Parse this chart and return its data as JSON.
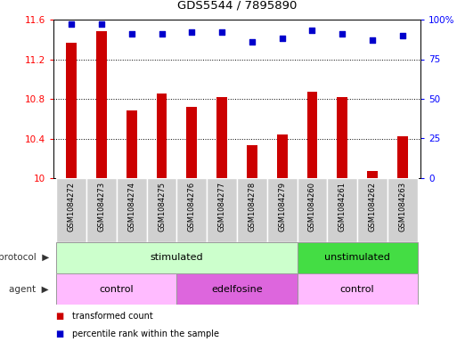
{
  "title": "GDS5544 / 7895890",
  "samples": [
    "GSM1084272",
    "GSM1084273",
    "GSM1084274",
    "GSM1084275",
    "GSM1084276",
    "GSM1084277",
    "GSM1084278",
    "GSM1084279",
    "GSM1084260",
    "GSM1084261",
    "GSM1084262",
    "GSM1084263"
  ],
  "bar_values": [
    11.37,
    11.48,
    10.68,
    10.85,
    10.72,
    10.82,
    10.33,
    10.44,
    10.87,
    10.82,
    10.07,
    10.42
  ],
  "dot_values": [
    97,
    97,
    91,
    91,
    92,
    92,
    86,
    88,
    93,
    91,
    87,
    90
  ],
  "bar_color": "#cc0000",
  "dot_color": "#0000cc",
  "ylim_left": [
    10.0,
    11.6
  ],
  "ylim_right": [
    0,
    100
  ],
  "yticks_left": [
    10.0,
    10.4,
    10.8,
    11.2,
    11.6
  ],
  "yticks_right": [
    0,
    25,
    50,
    75,
    100
  ],
  "ytick_labels_left": [
    "10",
    "10.4",
    "10.8",
    "11.2",
    "11.6"
  ],
  "ytick_labels_right": [
    "0",
    "25",
    "50",
    "75",
    "100%"
  ],
  "protocol_groups": [
    {
      "label": "stimulated",
      "start": 0,
      "end": 8,
      "color": "#ccffcc"
    },
    {
      "label": "unstimulated",
      "start": 8,
      "end": 12,
      "color": "#44dd44"
    }
  ],
  "agent_groups": [
    {
      "label": "control",
      "start": 0,
      "end": 4,
      "color": "#ffbbff"
    },
    {
      "label": "edelfosine",
      "start": 4,
      "end": 8,
      "color": "#dd66dd"
    },
    {
      "label": "control",
      "start": 8,
      "end": 12,
      "color": "#ffbbff"
    }
  ],
  "legend_bar_label": "transformed count",
  "legend_dot_label": "percentile rank within the sample",
  "protocol_label": "protocol",
  "agent_label": "agent",
  "label_bg_color": "#d0d0d0",
  "label_border_color": "#ffffff"
}
